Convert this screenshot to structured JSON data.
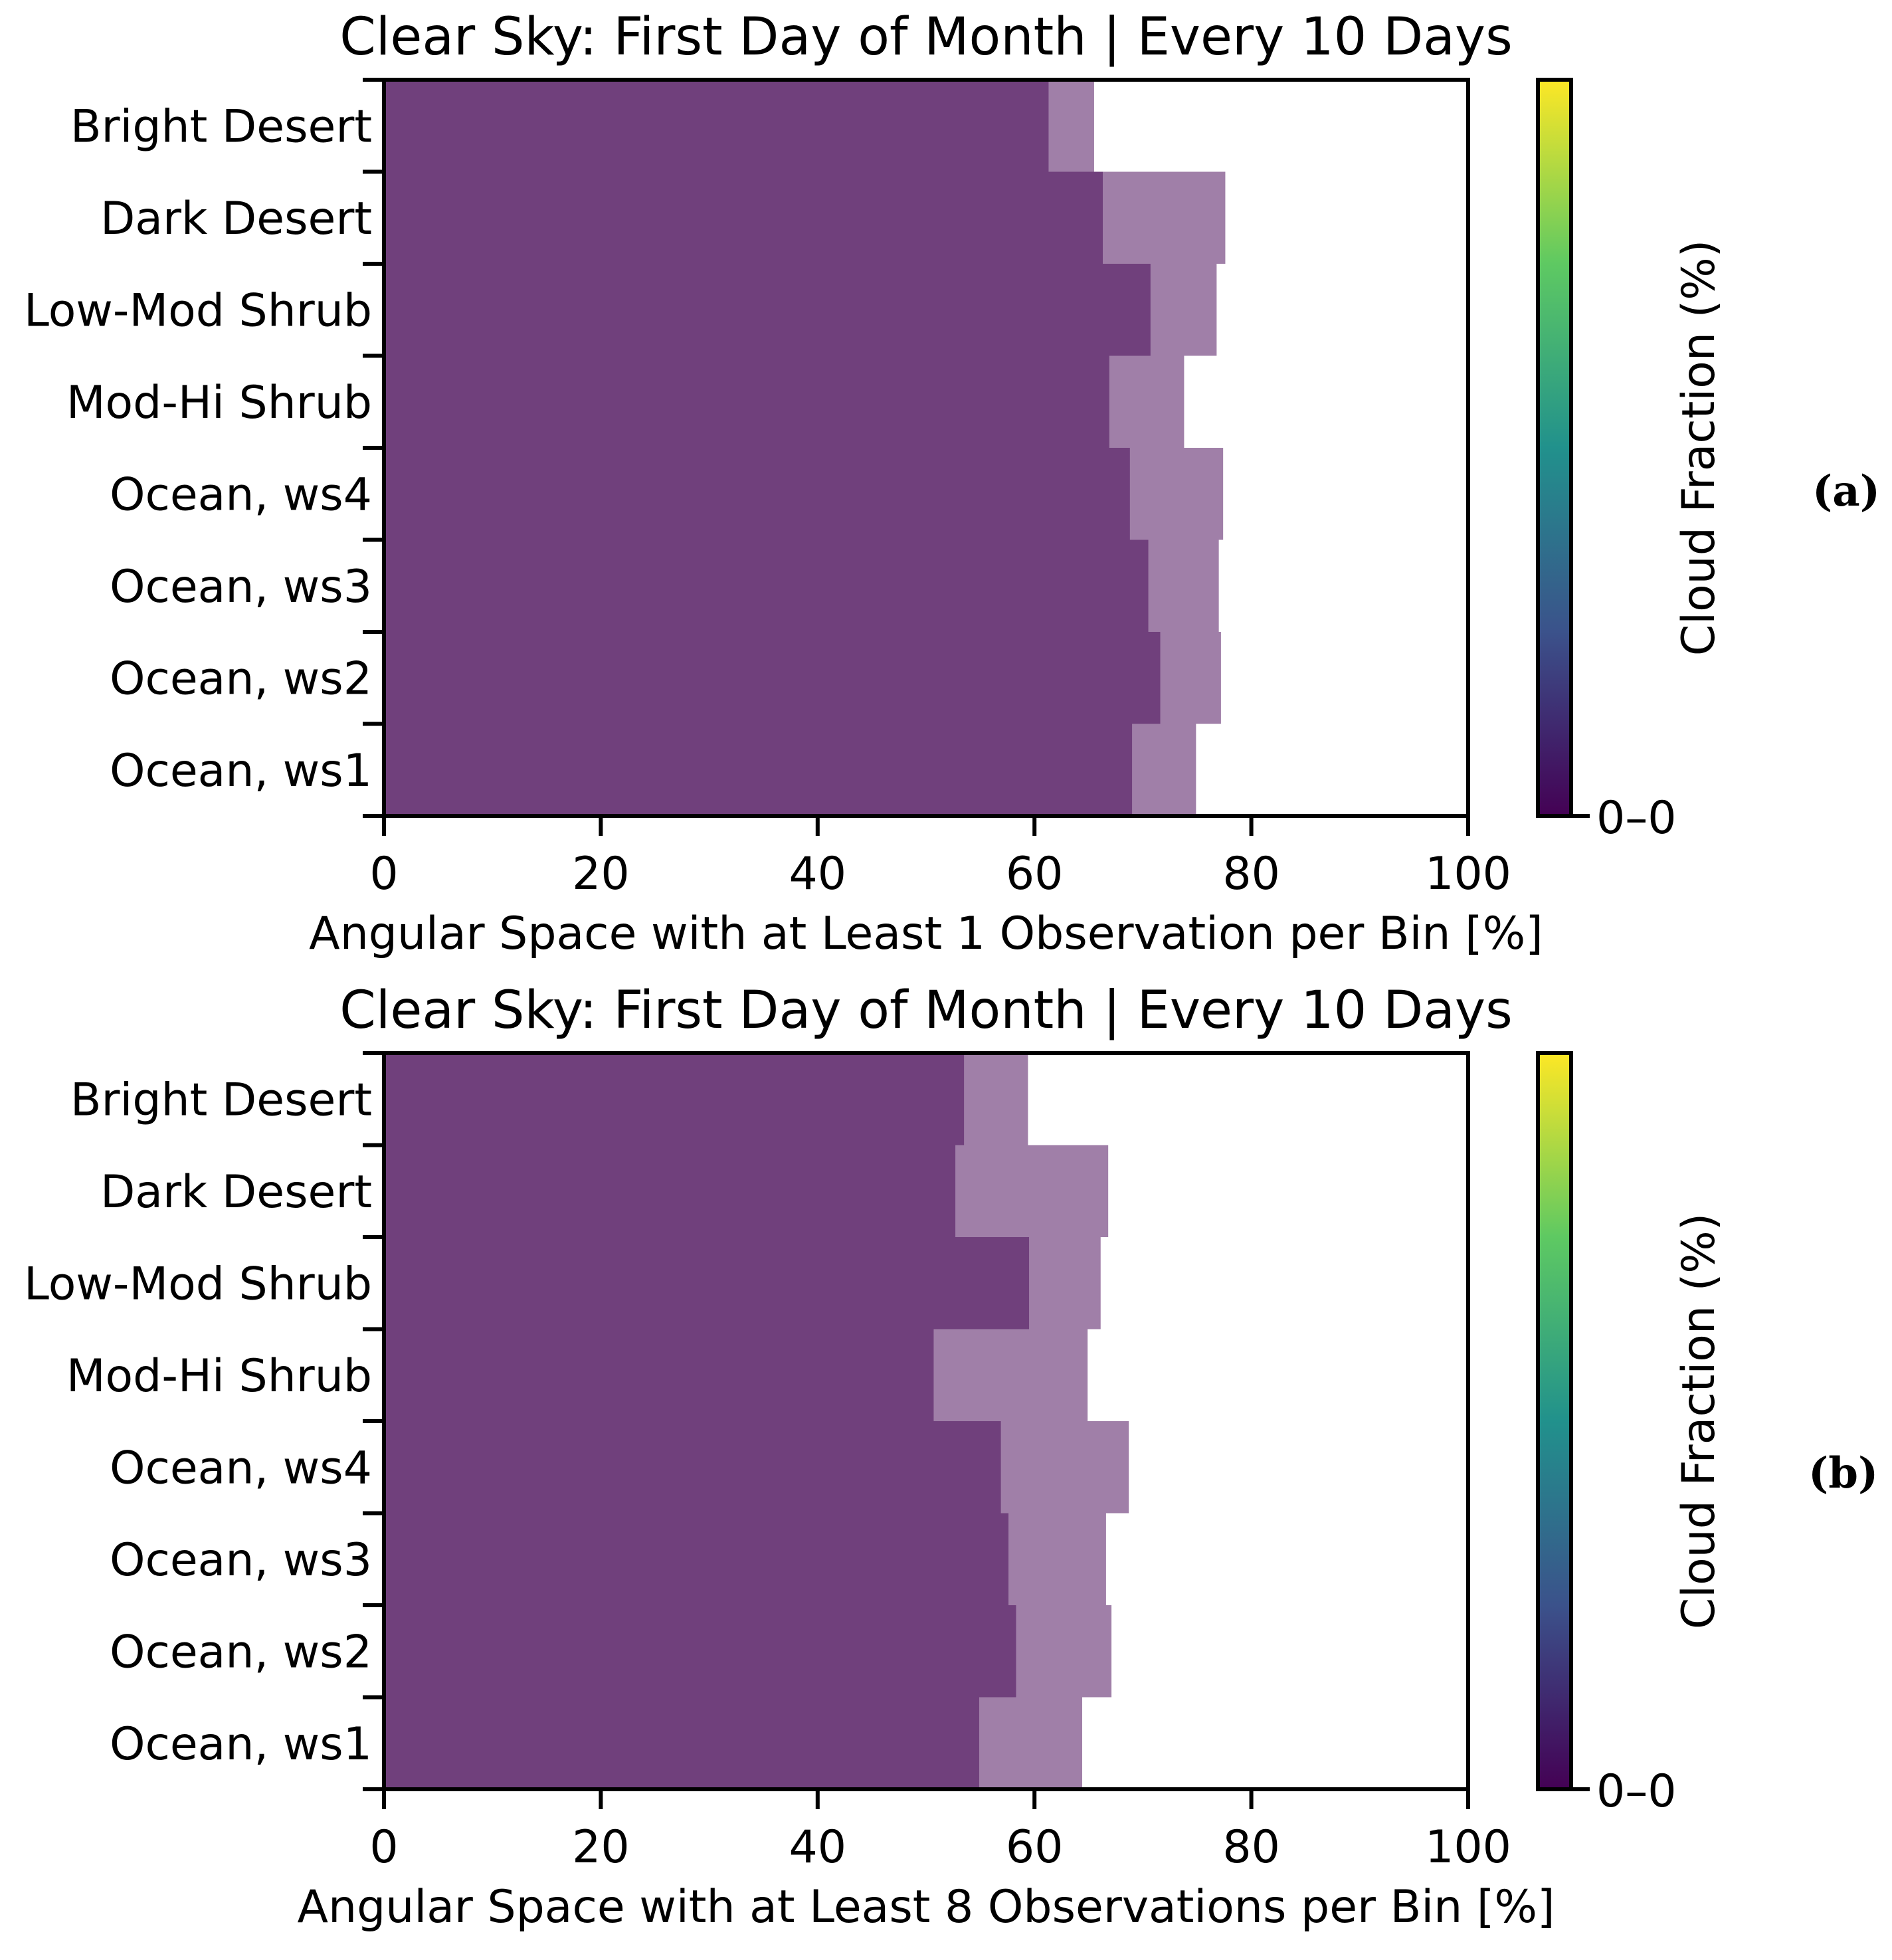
{
  "chart_data": [
    {
      "panel_label": "(a)",
      "type": "bar",
      "orientation": "horizontal",
      "title": "Clear Sky: First Day of Month | Every 10 Days",
      "xlabel": "Angular Space with at Least 1 Observation per Bin [%]",
      "ylabel": "",
      "xlim": [
        0,
        100
      ],
      "xticks": [
        "0",
        "20",
        "40",
        "60",
        "80",
        "100"
      ],
      "categories": [
        "Bright Desert",
        "Dark Desert",
        "Low-Mod Shrub",
        "Mod-Hi Shrub",
        "Ocean, ws4",
        "Ocean, ws3",
        "Ocean, ws2",
        "Ocean, ws1"
      ],
      "series": [
        {
          "name": "lower",
          "color": "#70407c",
          "values": [
            61.3,
            66.3,
            70.7,
            66.9,
            68.8,
            70.5,
            71.6,
            69.0
          ]
        },
        {
          "name": "upper",
          "color": "#a07fa8",
          "values": [
            65.5,
            77.6,
            76.8,
            73.8,
            77.4,
            77.0,
            77.2,
            74.9
          ]
        }
      ],
      "colorbar": {
        "label": "Cloud Fraction (%)",
        "tick_label": "0–0",
        "colors": [
          "#440154",
          "#3b528b",
          "#21918c",
          "#5ec962",
          "#fde725"
        ]
      }
    },
    {
      "panel_label": "(b)",
      "type": "bar",
      "orientation": "horizontal",
      "title": "Clear Sky: First Day of Month | Every 10 Days",
      "xlabel": "Angular Space with at Least 8 Observations per Bin [%]",
      "ylabel": "",
      "xlim": [
        0,
        100
      ],
      "xticks": [
        "0",
        "20",
        "40",
        "60",
        "80",
        "100"
      ],
      "categories": [
        "Bright Desert",
        "Dark Desert",
        "Low-Mod Shrub",
        "Mod-Hi Shrub",
        "Ocean, ws4",
        "Ocean, ws3",
        "Ocean, ws2",
        "Ocean, ws1"
      ],
      "series": [
        {
          "name": "lower",
          "color": "#70407c",
          "values": [
            53.5,
            52.7,
            59.5,
            50.7,
            56.9,
            57.6,
            58.3,
            54.9
          ]
        },
        {
          "name": "upper",
          "color": "#a07fa8",
          "values": [
            59.4,
            66.8,
            66.1,
            64.9,
            68.7,
            66.6,
            67.1,
            64.4
          ]
        }
      ],
      "colorbar": {
        "label": "Cloud Fraction (%)",
        "tick_label": "0–0",
        "colors": [
          "#440154",
          "#3b528b",
          "#21918c",
          "#5ec962",
          "#fde725"
        ]
      }
    }
  ]
}
